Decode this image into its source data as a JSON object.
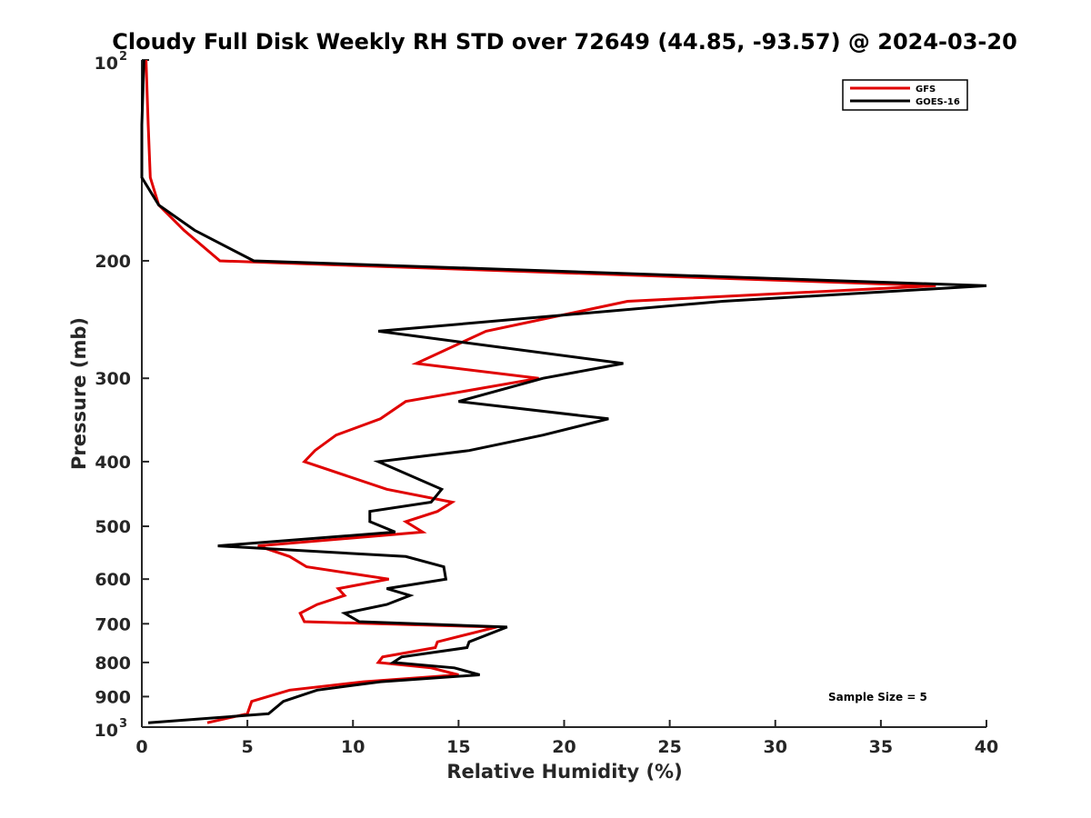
{
  "chart_data": {
    "type": "line",
    "title": "Cloudy Full Disk Weekly RH STD over 72649 (44.85, -93.57) @ 2024-03-20",
    "xlabel": "Relative Humidity (%)",
    "ylabel": "Pressure (mb)",
    "xlim": [
      0,
      40
    ],
    "ylim": [
      100,
      1000
    ],
    "yscale": "log",
    "y_reversed": true,
    "grid": false,
    "legend_position": "top-right",
    "x_ticks": [
      0,
      5,
      10,
      15,
      20,
      25,
      30,
      35,
      40
    ],
    "y_ticks": [
      {
        "value": 100,
        "base": "10",
        "exp": "2"
      },
      {
        "value": 200,
        "label": "200"
      },
      {
        "value": 300,
        "label": "300"
      },
      {
        "value": 400,
        "label": "400"
      },
      {
        "value": 500,
        "label": "500"
      },
      {
        "value": 600,
        "label": "600"
      },
      {
        "value": 700,
        "label": "700"
      },
      {
        "value": 800,
        "label": "800"
      },
      {
        "value": 900,
        "label": "900"
      },
      {
        "value": 1000,
        "base": "10",
        "exp": "3"
      }
    ],
    "series": [
      {
        "name": "GFS",
        "color": "#e00000",
        "points": [
          [
            0.2,
            100
          ],
          [
            0.3,
            125
          ],
          [
            0.4,
            150
          ],
          [
            0.8,
            165
          ],
          [
            2.0,
            180
          ],
          [
            3.7,
            200
          ],
          [
            37.6,
            218
          ],
          [
            23.0,
            230
          ],
          [
            16.3,
            255
          ],
          [
            13.0,
            285
          ],
          [
            18.8,
            300
          ],
          [
            12.5,
            325
          ],
          [
            11.3,
            345
          ],
          [
            9.2,
            365
          ],
          [
            8.2,
            385
          ],
          [
            7.7,
            400
          ],
          [
            11.6,
            440
          ],
          [
            14.7,
            460
          ],
          [
            14.0,
            475
          ],
          [
            12.5,
            492
          ],
          [
            13.3,
            510
          ],
          [
            5.5,
            535
          ],
          [
            7.0,
            555
          ],
          [
            7.8,
            575
          ],
          [
            11.7,
            600
          ],
          [
            9.3,
            620
          ],
          [
            9.6,
            635
          ],
          [
            8.3,
            655
          ],
          [
            7.5,
            675
          ],
          [
            7.7,
            695
          ],
          [
            16.8,
            708
          ],
          [
            14.0,
            745
          ],
          [
            13.9,
            760
          ],
          [
            11.4,
            785
          ],
          [
            11.2,
            800
          ],
          [
            13.7,
            815
          ],
          [
            15.0,
            835
          ],
          [
            10.5,
            855
          ],
          [
            7.0,
            880
          ],
          [
            5.2,
            915
          ],
          [
            5.0,
            955
          ],
          [
            3.1,
            985
          ]
        ]
      },
      {
        "name": "GOES-16",
        "color": "#000000",
        "points": [
          [
            0.1,
            100
          ],
          [
            0.0,
            125
          ],
          [
            0.0,
            150
          ],
          [
            0.8,
            165
          ],
          [
            2.5,
            180
          ],
          [
            5.3,
            200
          ],
          [
            40.0,
            218
          ],
          [
            27.5,
            230
          ],
          [
            11.2,
            255
          ],
          [
            22.8,
            285
          ],
          [
            19.0,
            300
          ],
          [
            15.0,
            325
          ],
          [
            22.1,
            345
          ],
          [
            19.0,
            365
          ],
          [
            15.5,
            385
          ],
          [
            11.2,
            400
          ],
          [
            14.2,
            440
          ],
          [
            13.7,
            460
          ],
          [
            10.8,
            475
          ],
          [
            10.8,
            492
          ],
          [
            12.0,
            510
          ],
          [
            3.6,
            535
          ],
          [
            12.5,
            555
          ],
          [
            14.3,
            575
          ],
          [
            14.4,
            600
          ],
          [
            11.6,
            620
          ],
          [
            12.7,
            635
          ],
          [
            11.6,
            655
          ],
          [
            9.6,
            675
          ],
          [
            10.3,
            695
          ],
          [
            17.3,
            708
          ],
          [
            15.5,
            745
          ],
          [
            15.4,
            760
          ],
          [
            12.3,
            785
          ],
          [
            11.9,
            800
          ],
          [
            14.8,
            815
          ],
          [
            16.0,
            835
          ],
          [
            11.3,
            855
          ],
          [
            8.3,
            880
          ],
          [
            6.7,
            915
          ],
          [
            6.0,
            955
          ],
          [
            0.3,
            985
          ]
        ]
      }
    ],
    "annotation": "Sample Size = 5"
  }
}
